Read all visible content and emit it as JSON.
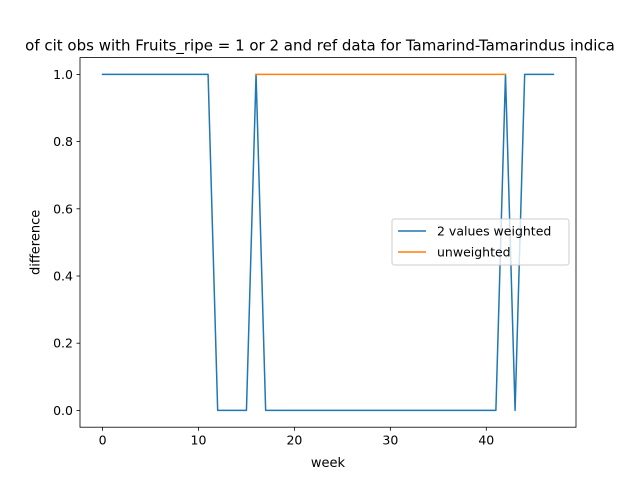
{
  "chart_data": {
    "type": "line",
    "title": "of cit obs with Fruits_ripe = 1 or 2 and ref data for Tamarind-Tamarindus indica",
    "xlabel": "week",
    "ylabel": "difference",
    "xlim": [
      -2.35,
      49.35
    ],
    "ylim": [
      -0.05,
      1.05
    ],
    "xticks": [
      0,
      10,
      20,
      30,
      40
    ],
    "yticks": [
      0.0,
      0.2,
      0.4,
      0.6,
      0.8,
      1.0
    ],
    "xtick_labels": [
      "0",
      "10",
      "20",
      "30",
      "40"
    ],
    "ytick_labels": [
      "0.0",
      "0.2",
      "0.4",
      "0.6",
      "0.8",
      "1.0"
    ],
    "legend_position": "center-right",
    "grid": false,
    "series": [
      {
        "name": "2 values weighted",
        "color": "#1f77b4",
        "x": [
          0,
          1,
          2,
          3,
          4,
          5,
          6,
          7,
          8,
          9,
          10,
          11,
          12,
          13,
          14,
          15,
          16,
          17,
          18,
          19,
          20,
          21,
          22,
          23,
          24,
          25,
          26,
          27,
          28,
          29,
          30,
          31,
          32,
          33,
          34,
          35,
          36,
          37,
          38,
          39,
          40,
          41,
          42,
          43,
          44,
          45,
          46,
          47
        ],
        "y": [
          1,
          1,
          1,
          1,
          1,
          1,
          1,
          1,
          1,
          1,
          1,
          1,
          0,
          0,
          0,
          0,
          1,
          0,
          0,
          0,
          0,
          0,
          0,
          0,
          0,
          0,
          0,
          0,
          0,
          0,
          0,
          0,
          0,
          0,
          0,
          0,
          0,
          0,
          0,
          0,
          0,
          0,
          1,
          0,
          1,
          1,
          1,
          1
        ]
      },
      {
        "name": "unweighted",
        "color": "#ff7f0e",
        "x": [
          16,
          17,
          18,
          19,
          20,
          21,
          22,
          23,
          24,
          25,
          26,
          27,
          28,
          29,
          30,
          31,
          32,
          33,
          34,
          35,
          36,
          37,
          38,
          39,
          40,
          41,
          42
        ],
        "y": [
          1,
          1,
          1,
          1,
          1,
          1,
          1,
          1,
          1,
          1,
          1,
          1,
          1,
          1,
          1,
          1,
          1,
          1,
          1,
          1,
          1,
          1,
          1,
          1,
          1,
          1,
          1
        ]
      }
    ]
  }
}
